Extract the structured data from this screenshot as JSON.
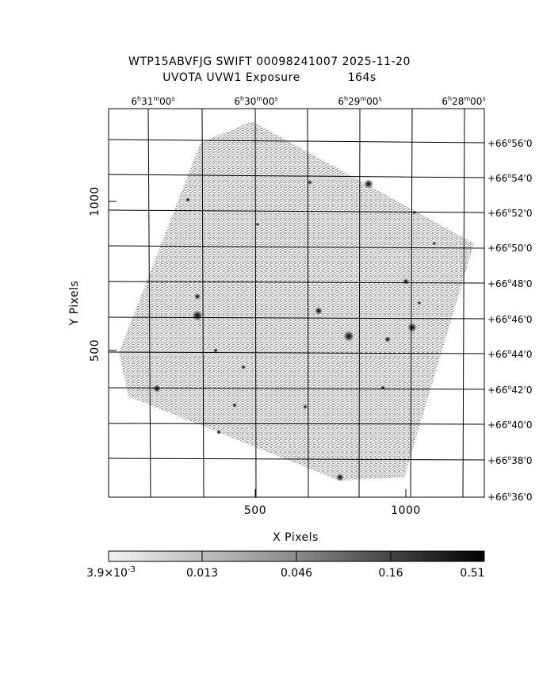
{
  "header": {
    "title_line1": "WTP15ABVFJG SWIFT 00098241007 2025-11-20",
    "title_line2_left": "UVOTA UVW1 Exposure",
    "title_line2_right": "164s"
  },
  "axes": {
    "xlabel": "X Pixels",
    "ylabel": "Y Pixels",
    "x_ticks": [
      "500",
      "1000"
    ],
    "y_ticks": [
      "500",
      "1000"
    ],
    "ra_ticks": [
      {
        "h": "6",
        "m": "31",
        "s": "00"
      },
      {
        "h": "6",
        "m": "30",
        "s": "00"
      },
      {
        "h": "6",
        "m": "29",
        "s": "00"
      },
      {
        "h": "6",
        "m": "28",
        "s": "00"
      }
    ],
    "dec_ticks": [
      {
        "deg": "+66",
        "min": "56"
      },
      {
        "deg": "+66",
        "min": "54"
      },
      {
        "deg": "+66",
        "min": "52"
      },
      {
        "deg": "+66",
        "min": "50"
      },
      {
        "deg": "+66",
        "min": "48"
      },
      {
        "deg": "+66",
        "min": "46"
      },
      {
        "deg": "+66",
        "min": "44"
      },
      {
        "deg": "+66",
        "min": "42"
      },
      {
        "deg": "+66",
        "min": "40"
      },
      {
        "deg": "+66",
        "min": "38"
      },
      {
        "deg": "+66",
        "min": "36"
      }
    ]
  },
  "colorbar": {
    "labels": [
      "3.9x10-3",
      "0.013",
      "0.046",
      "0.16",
      "0.51"
    ],
    "min_mantissa": "3.9",
    "min_exp": "-3"
  }
}
